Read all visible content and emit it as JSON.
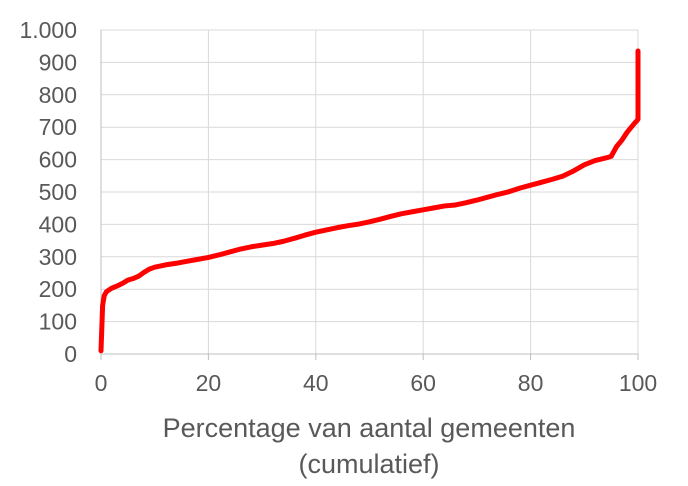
{
  "chart_data": {
    "type": "line",
    "title": "",
    "xlabel_lines": [
      "Percentage van aantal gemeenten",
      "(cumulatief)"
    ],
    "ylabel": "",
    "xlim": [
      0,
      100
    ],
    "ylim": [
      0,
      1000
    ],
    "x_ticks": [
      0,
      20,
      40,
      60,
      80,
      100
    ],
    "y_ticks": [
      0,
      100,
      200,
      300,
      400,
      500,
      600,
      700,
      800,
      900,
      1000
    ],
    "x_tick_labels": [
      "0",
      "20",
      "40",
      "60",
      "80",
      "100"
    ],
    "y_tick_labels": [
      "0",
      "100",
      "200",
      "300",
      "400",
      "500",
      "600",
      "700",
      "800",
      "900",
      "1.000"
    ],
    "grid": true,
    "colors": {
      "line": "#ff0000",
      "grid": "#d9d9d9",
      "axis": "#bfbfbf",
      "text": "#595959"
    },
    "series": [
      {
        "x": [
          0,
          0.3,
          0.6,
          1,
          1.5,
          2,
          3,
          4,
          5,
          6,
          7,
          8,
          9,
          10,
          12,
          14,
          16,
          18,
          20,
          22,
          24,
          26,
          28,
          30,
          32,
          34,
          36,
          38,
          40,
          42,
          44,
          46,
          48,
          50,
          52,
          54,
          56,
          58,
          60,
          62,
          64,
          66,
          68,
          70,
          72,
          74,
          76,
          78,
          80,
          82,
          84,
          86,
          88,
          90,
          92,
          94,
          95,
          96,
          97,
          98,
          99,
          99.5,
          99.8,
          100,
          100
        ],
        "values": [
          10,
          150,
          180,
          192,
          198,
          203,
          210,
          218,
          228,
          233,
          240,
          252,
          262,
          268,
          275,
          280,
          286,
          292,
          298,
          306,
          315,
          324,
          331,
          336,
          341,
          348,
          357,
          367,
          376,
          383,
          390,
          396,
          401,
          408,
          416,
          425,
          433,
          439,
          445,
          451,
          457,
          460,
          467,
          475,
          484,
          493,
          501,
          512,
          521,
          530,
          539,
          549,
          565,
          584,
          597,
          605,
          610,
          640,
          660,
          685,
          705,
          715,
          720,
          725,
          935
        ]
      }
    ]
  }
}
